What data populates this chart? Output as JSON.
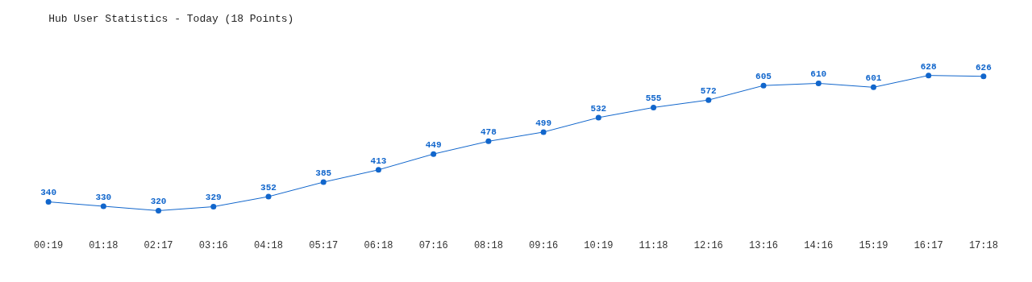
{
  "chart_data": {
    "type": "line",
    "title": "Hub User Statistics - Today (18 Points)",
    "categories": [
      "00:19",
      "01:18",
      "02:17",
      "03:16",
      "04:18",
      "05:17",
      "06:18",
      "07:16",
      "08:18",
      "09:16",
      "10:19",
      "11:18",
      "12:16",
      "13:16",
      "14:16",
      "15:19",
      "16:17",
      "17:18"
    ],
    "series": [
      {
        "color": "#1166cc",
        "values": [
          340,
          330,
          320,
          329,
          352,
          385,
          413,
          449,
          478,
          499,
          532,
          555,
          572,
          605,
          610,
          601,
          628,
          626
        ]
      }
    ],
    "data_labels": true,
    "marker": "circle",
    "line_style": "solid",
    "legend": false,
    "tick_labels": "x"
  }
}
